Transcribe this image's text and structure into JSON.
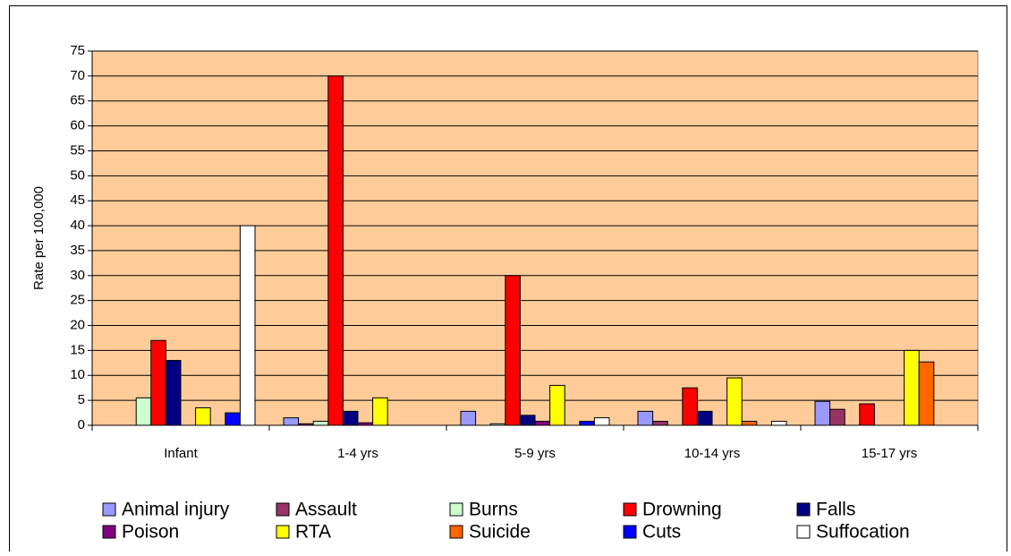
{
  "chart_data": {
    "type": "bar",
    "y_label": "Rate per 100,000",
    "categories": [
      "Infant",
      "1-4 yrs",
      "5-9 yrs",
      "10-14 yrs",
      "15-17 yrs"
    ],
    "series": [
      {
        "name": "Animal injury",
        "color": "#9999ff",
        "values": [
          0,
          1.5,
          2.8,
          2.8,
          4.8
        ]
      },
      {
        "name": "Assault",
        "color": "#993366",
        "values": [
          0,
          0.3,
          0,
          0.8,
          3.2
        ]
      },
      {
        "name": "Burns",
        "color": "#ccffcc",
        "values": [
          5.5,
          0.8,
          0.3,
          0,
          0
        ]
      },
      {
        "name": "Drowning",
        "color": "#ff0000",
        "values": [
          17,
          70,
          30,
          7.5,
          4.3
        ]
      },
      {
        "name": "Falls",
        "color": "#000080",
        "values": [
          13,
          2.8,
          2,
          2.8,
          0
        ]
      },
      {
        "name": "Poison",
        "color": "#800080",
        "values": [
          0,
          0.5,
          0.8,
          0,
          0
        ]
      },
      {
        "name": "RTA",
        "color": "#ffff00",
        "values": [
          3.5,
          5.5,
          8,
          9.5,
          15
        ]
      },
      {
        "name": "Suicide",
        "color": "#ff6600",
        "values": [
          0,
          0,
          0,
          0.8,
          12.7
        ]
      },
      {
        "name": "Cuts",
        "color": "#0000ff",
        "values": [
          2.5,
          0,
          0.8,
          0,
          0
        ]
      },
      {
        "name": "Suffocation",
        "color": "#ffffff",
        "values": [
          40,
          0,
          1.5,
          0.8,
          0
        ]
      }
    ],
    "ylim": [
      0,
      75
    ],
    "yticks": [
      0,
      5,
      10,
      15,
      20,
      25,
      30,
      35,
      40,
      45,
      50,
      55,
      60,
      65,
      70,
      75
    ],
    "grid": true,
    "plot_background": "#ffcc99",
    "legend": "bottom"
  }
}
